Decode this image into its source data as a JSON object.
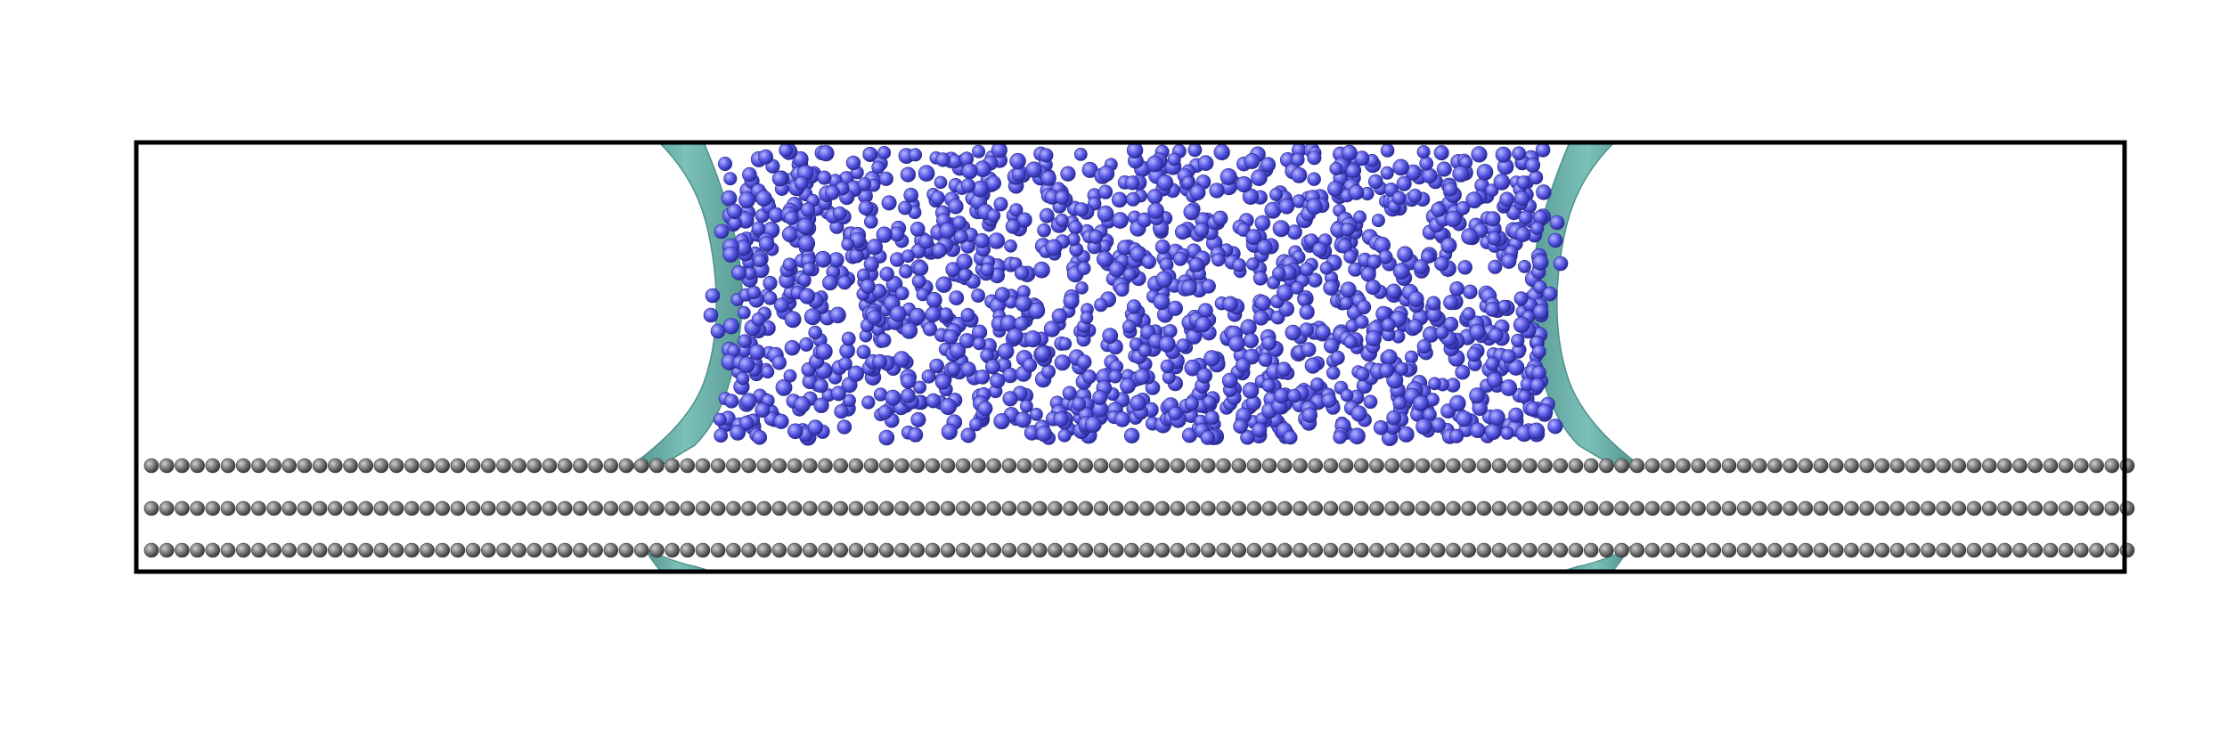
{
  "scene": {
    "description_free": true,
    "background_color": "#ffffff",
    "box_outline_color": "#000000",
    "substrate": {
      "layers": 3,
      "atoms_per_layer": 130,
      "atom_color": "#6e6e6e",
      "atom_highlight": "#c8c8c8"
    },
    "droplet": {
      "particle_count": 1500,
      "particle_color": "#5a5ae6",
      "particle_highlight": "#b4b4ff",
      "particle_shadow": "#2a2a9a"
    },
    "interface_surface": {
      "color": "#6fb3ad",
      "edge_color": "#4c8f8a"
    }
  }
}
